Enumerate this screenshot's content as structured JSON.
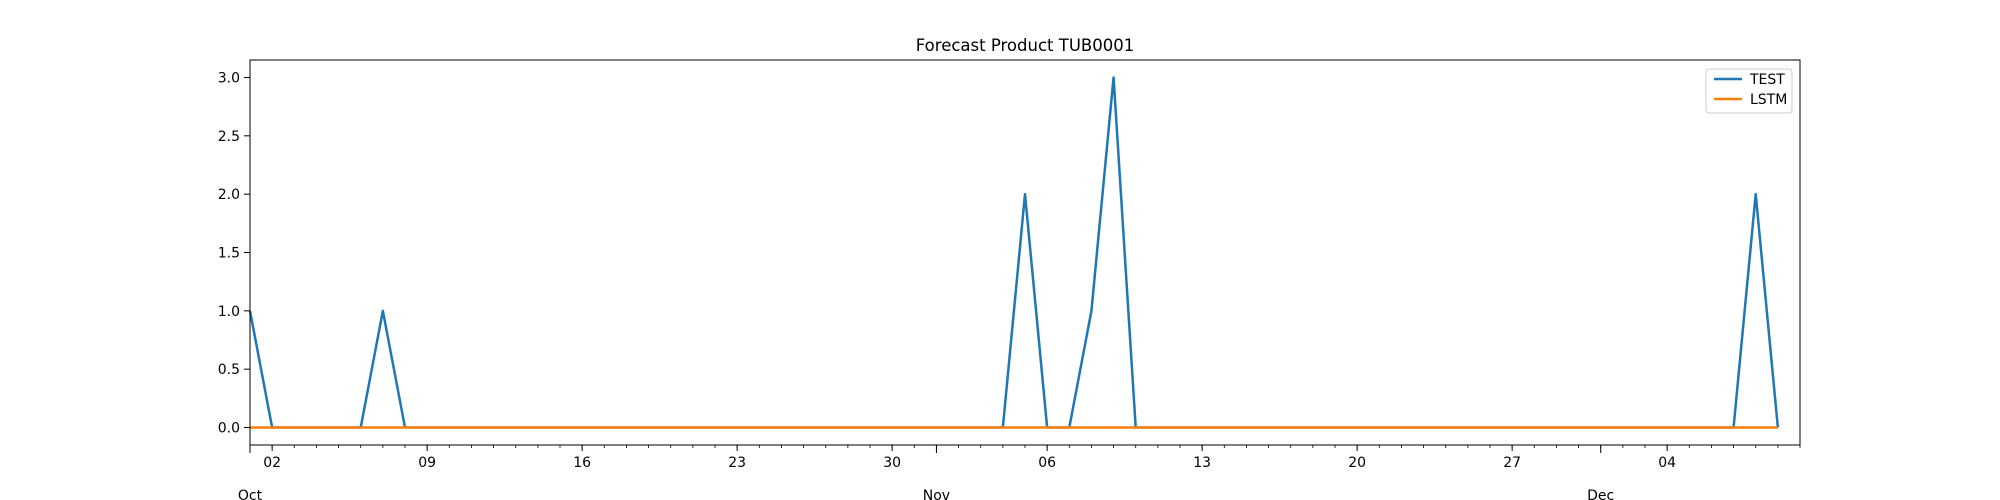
{
  "chart_data": {
    "type": "line",
    "title": "Forecast Product TUB0001",
    "xlabel": "",
    "ylabel": "",
    "x_start": "2023-10-01",
    "x_end": "2023-12-10",
    "ylim": [
      -0.15,
      3.15
    ],
    "y_ticks": [
      "0.0",
      "0.5",
      "1.0",
      "1.5",
      "2.0",
      "2.5",
      "3.0"
    ],
    "x_minor_ticks": [
      "02",
      "09",
      "16",
      "23",
      "30",
      "06",
      "13",
      "20",
      "27",
      "04"
    ],
    "x_major_ticks": [
      "Oct",
      "Nov",
      "Dec"
    ],
    "legend_position": "top-right",
    "grid": false,
    "series": [
      {
        "name": "TEST",
        "color": "#1f77b4",
        "points": [
          [
            "2023-10-01",
            1
          ],
          [
            "2023-10-02",
            0
          ],
          [
            "2023-10-06",
            0
          ],
          [
            "2023-10-07",
            1
          ],
          [
            "2023-10-08",
            0
          ],
          [
            "2023-11-04",
            0
          ],
          [
            "2023-11-05",
            2
          ],
          [
            "2023-11-06",
            0
          ],
          [
            "2023-11-07",
            0
          ],
          [
            "2023-11-08",
            1
          ],
          [
            "2023-11-09",
            3
          ],
          [
            "2023-11-10",
            0
          ],
          [
            "2023-12-07",
            0
          ],
          [
            "2023-12-08",
            2
          ],
          [
            "2023-12-09",
            0
          ]
        ]
      },
      {
        "name": "LSTM",
        "color": "#ff7f0e",
        "points": [
          [
            "2023-10-01",
            0
          ],
          [
            "2023-12-09",
            0
          ]
        ]
      }
    ]
  }
}
